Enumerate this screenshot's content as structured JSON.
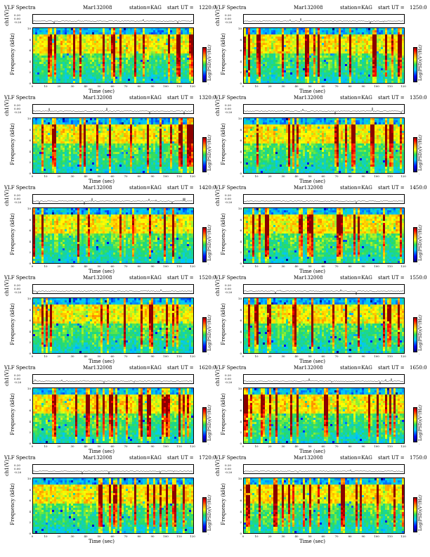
{
  "labels": {
    "title": "VLF Spectra",
    "date": "Mar132008",
    "station": "station=KAG",
    "start_prefix": "start  UT =",
    "wave_ylabel": "ch1(V)",
    "freq_ylabel_line1": "ch1",
    "freq_ylabel_line2": "Frequency  (kHz)",
    "xlabel": "Time  (sec)",
    "colorbar_label": "Log(PSD)(V²/Hz)",
    "colorbar_min": "-",
    "colorbar_max": "-"
  },
  "wave_ticks": [
    "0.20",
    "0.00",
    "-0.20"
  ],
  "freq_ticks": [
    "10",
    "8",
    "6",
    "4",
    "2",
    "0"
  ],
  "time_ticks": [
    "0",
    "10",
    "20",
    "30",
    "40",
    "50",
    "60",
    "70",
    "80",
    "90",
    "100",
    "110",
    "120"
  ],
  "chart_data": [
    {
      "type": "heatmap",
      "title": "VLF Spectra",
      "date": "Mar132008",
      "station": "station=KAG",
      "start_ut": "1220:0",
      "xlabel": "Time  (sec)",
      "ylabel": "Frequency  (kHz)",
      "xlim": [
        0,
        120
      ],
      "ylim": [
        0,
        10
      ],
      "colorbar": "Log(PSD)(V²/Hz)"
    },
    {
      "type": "heatmap",
      "title": "VLF Spectra",
      "date": "Mar132008",
      "station": "station=KAG",
      "start_ut": "1250:0",
      "xlabel": "Time  (sec)",
      "ylabel": "Frequency  (kHz)",
      "xlim": [
        0,
        120
      ],
      "ylim": [
        0,
        10
      ],
      "colorbar": "Log(PSD)(V²/Hz)"
    },
    {
      "type": "heatmap",
      "title": "VLF Spectra",
      "date": "Mar132008",
      "station": "station=KAG",
      "start_ut": "1320:0",
      "xlabel": "Time  (sec)",
      "ylabel": "Frequency  (kHz)",
      "xlim": [
        0,
        120
      ],
      "ylim": [
        0,
        10
      ],
      "colorbar": "Log(PSD)(V²/Hz)"
    },
    {
      "type": "heatmap",
      "title": "VLF Spectra",
      "date": "Mar132008",
      "station": "station=KAG",
      "start_ut": "1350:0",
      "xlabel": "Time  (sec)",
      "ylabel": "Frequency  (kHz)",
      "xlim": [
        0,
        120
      ],
      "ylim": [
        0,
        10
      ],
      "colorbar": "Log(PSD)(V²/Hz)"
    },
    {
      "type": "heatmap",
      "title": "VLF Spectra",
      "date": "Mar132008",
      "station": "station=KAG",
      "start_ut": "1420:0",
      "xlabel": "Time  (sec)",
      "ylabel": "Frequency  (kHz)",
      "xlim": [
        0,
        120
      ],
      "ylim": [
        0,
        10
      ],
      "colorbar": "Log(PSD)(V²/Hz)"
    },
    {
      "type": "heatmap",
      "title": "VLF Spectra",
      "date": "Mar132008",
      "station": "station=KAG",
      "start_ut": "1450:0",
      "xlabel": "Time  (sec)",
      "ylabel": "Frequency  (kHz)",
      "xlim": [
        0,
        120
      ],
      "ylim": [
        0,
        10
      ],
      "colorbar": "Log(PSD)(V²/Hz)"
    },
    {
      "type": "heatmap",
      "title": "VLF Spectra",
      "date": "Mar132008",
      "station": "station=KAG",
      "start_ut": "1520:0",
      "xlabel": "Time  (sec)",
      "ylabel": "Frequency  (kHz)",
      "xlim": [
        0,
        120
      ],
      "ylim": [
        0,
        10
      ],
      "colorbar": "Log(PSD)(V²/Hz)"
    },
    {
      "type": "heatmap",
      "title": "VLF Spectra",
      "date": "Mar132008",
      "station": "station=KAG",
      "start_ut": "1550:0",
      "xlabel": "Time  (sec)",
      "ylabel": "Frequency  (kHz)",
      "xlim": [
        0,
        120
      ],
      "ylim": [
        0,
        10
      ],
      "colorbar": "Log(PSD)(V²/Hz)"
    },
    {
      "type": "heatmap",
      "title": "VLF Spectra",
      "date": "Mar132008",
      "station": "station=KAG",
      "start_ut": "1620:0",
      "xlabel": "Time  (sec)",
      "ylabel": "Frequency  (kHz)",
      "xlim": [
        0,
        120
      ],
      "ylim": [
        0,
        10
      ],
      "colorbar": "Log(PSD)(V²/Hz)"
    },
    {
      "type": "heatmap",
      "title": "VLF Spectra",
      "date": "Mar132008",
      "station": "station=KAG",
      "start_ut": "1650:0",
      "xlabel": "Time  (sec)",
      "ylabel": "Frequency  (kHz)",
      "xlim": [
        0,
        120
      ],
      "ylim": [
        0,
        10
      ],
      "colorbar": "Log(PSD)(V²/Hz)"
    },
    {
      "type": "heatmap",
      "title": "VLF Spectra",
      "date": "Mar132008",
      "station": "station=KAG",
      "start_ut": "1720:0",
      "xlabel": "Time  (sec)",
      "ylabel": "Frequency  (kHz)",
      "xlim": [
        0,
        120
      ],
      "ylim": [
        0,
        10
      ],
      "colorbar": "Log(PSD)(V²/Hz)"
    },
    {
      "type": "heatmap",
      "title": "VLF Spectra",
      "date": "Mar132008",
      "station": "station=KAG",
      "start_ut": "1750:0",
      "xlabel": "Time  (sec)",
      "ylabel": "Frequency  (kHz)",
      "xlim": [
        0,
        120
      ],
      "ylim": [
        0,
        10
      ],
      "colorbar": "Log(PSD)(V²/Hz)"
    }
  ]
}
